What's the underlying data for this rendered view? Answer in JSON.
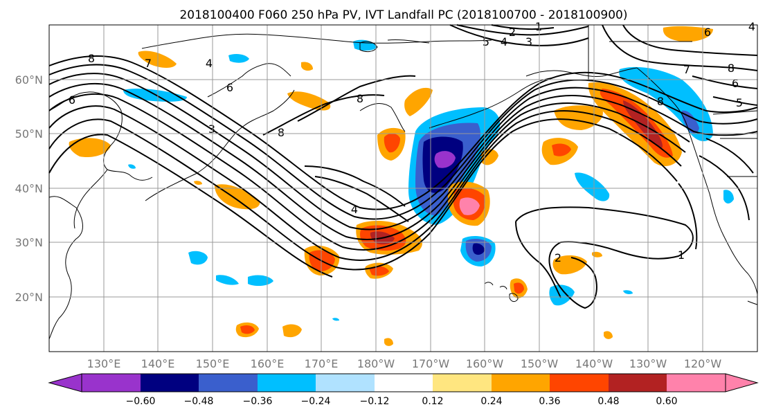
{
  "title": "2018100400 F060 250 hPa PV, IVT Landfall PC (2018100700 - 2018100900)",
  "lat_labels": [
    "20°N",
    "30°N",
    "40°N",
    "50°N",
    "60°N"
  ],
  "lon_labels": [
    "130°E",
    "140°E",
    "150°E",
    "160°E",
    "170°E",
    "180°W",
    "170°W",
    "160°W",
    "150°W",
    "140°W",
    "130°W",
    "120°W"
  ],
  "colorbar": {
    "ticks": [
      "−0.60",
      "−0.48",
      "−0.36",
      "−0.24",
      "−0.12",
      "0.12",
      "0.24",
      "0.36",
      "0.48",
      "0.60"
    ],
    "colors": [
      "#9933cc",
      "#000080",
      "#3a5fcd",
      "#00bfff",
      "#b0e2ff",
      "#ffffff",
      "#ffe680",
      "#ffa500",
      "#ff4500",
      "#b22222",
      "#ff82ab"
    ]
  },
  "contour_labels": [
    "8",
    "7",
    "4",
    "6",
    "3",
    "8",
    "8",
    "4",
    "2",
    "1",
    "3",
    "5",
    "4",
    "6",
    "4",
    "7",
    "8",
    "6",
    "5",
    "8",
    "6",
    "1",
    "2"
  ],
  "colors": {
    "frame": "#000000",
    "grid": "#999999",
    "axis_label": "#777777"
  }
}
